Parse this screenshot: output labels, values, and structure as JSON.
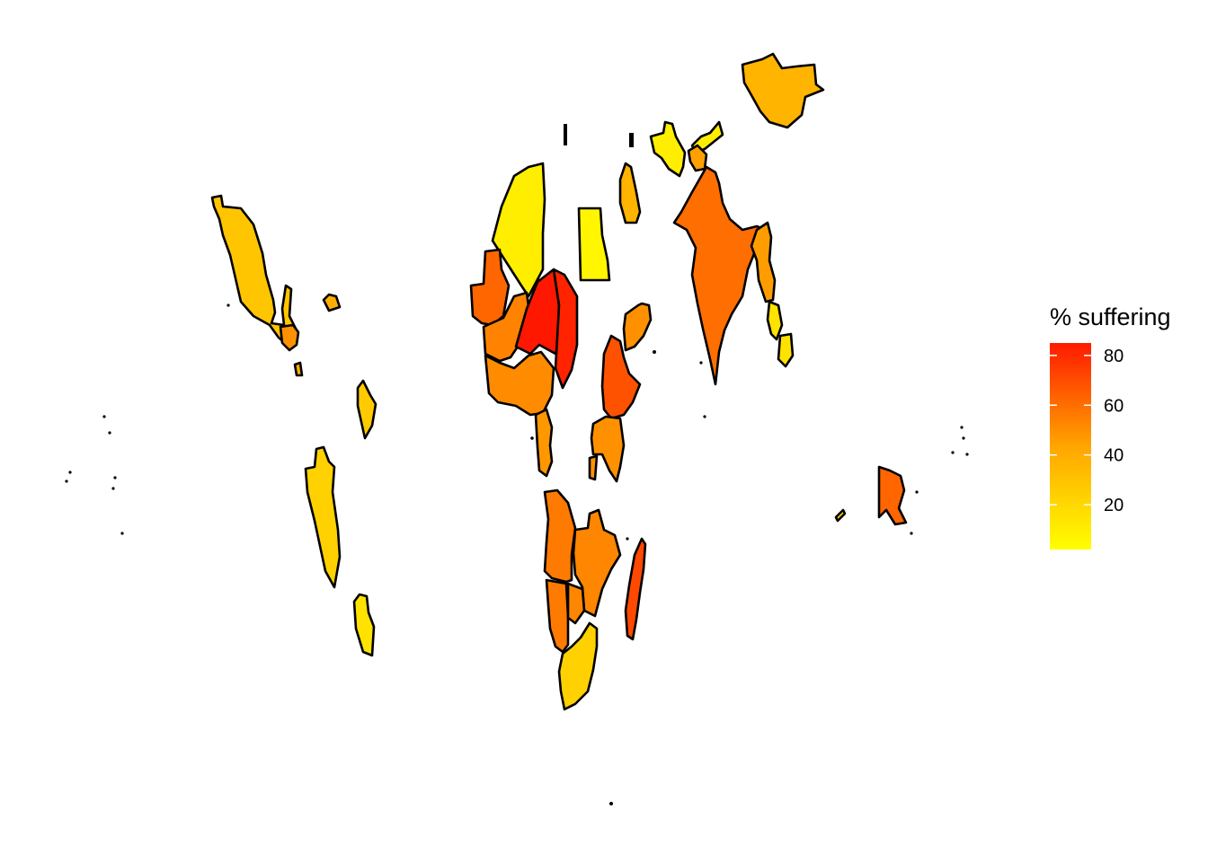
{
  "legend": {
    "title": "% suffering",
    "ticks": [
      "20",
      "40",
      "60",
      "80"
    ],
    "colors": {
      "low": "#FFFF00",
      "high": "#FF0000"
    }
  },
  "map": {
    "projection": "world map, developing countries only",
    "border_color": "#000000",
    "regions": [
      {
        "name": "mexico",
        "value": 22
      },
      {
        "name": "central-america",
        "value": 40
      },
      {
        "name": "caribbean",
        "value": 30
      },
      {
        "name": "northern-south-america",
        "value": 20
      },
      {
        "name": "andean-south-america",
        "value": 18
      },
      {
        "name": "southern-south-america",
        "value": 12
      },
      {
        "name": "algeria-libya",
        "value": 8
      },
      {
        "name": "egypt",
        "value": 5
      },
      {
        "name": "west-africa-coast",
        "value": 55
      },
      {
        "name": "sahel",
        "value": 45
      },
      {
        "name": "chad-niger",
        "value": 82
      },
      {
        "name": "sudan",
        "value": 78
      },
      {
        "name": "nigeria-gulf",
        "value": 42
      },
      {
        "name": "central-africa",
        "value": 38
      },
      {
        "name": "ethiopia",
        "value": 62
      },
      {
        "name": "yemen-saudi",
        "value": 40
      },
      {
        "name": "middle-east",
        "value": 28
      },
      {
        "name": "east-africa",
        "value": 40
      },
      {
        "name": "southern-africa-west",
        "value": 48
      },
      {
        "name": "southern-africa-east",
        "value": 44
      },
      {
        "name": "south-africa",
        "value": 18
      },
      {
        "name": "madagascar",
        "value": 65
      },
      {
        "name": "central-asia",
        "value": 8
      },
      {
        "name": "mongolia",
        "value": 28
      },
      {
        "name": "afghanistan-pakistan",
        "value": 35
      },
      {
        "name": "india",
        "value": 52
      },
      {
        "name": "southeast-asia",
        "value": 36
      },
      {
        "name": "indochina",
        "value": 12
      },
      {
        "name": "papua-new-guinea",
        "value": 55
      }
    ]
  }
}
